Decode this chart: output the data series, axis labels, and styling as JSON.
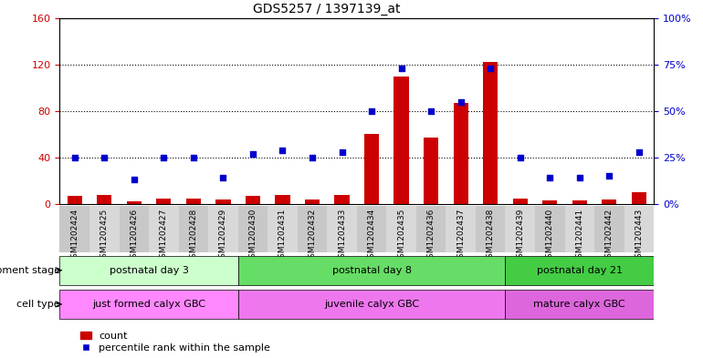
{
  "title": "GDS5257 / 1397139_at",
  "samples": [
    "GSM1202424",
    "GSM1202425",
    "GSM1202426",
    "GSM1202427",
    "GSM1202428",
    "GSM1202429",
    "GSM1202430",
    "GSM1202431",
    "GSM1202432",
    "GSM1202433",
    "GSM1202434",
    "GSM1202435",
    "GSM1202436",
    "GSM1202437",
    "GSM1202438",
    "GSM1202439",
    "GSM1202440",
    "GSM1202441",
    "GSM1202442",
    "GSM1202443"
  ],
  "counts": [
    7,
    8,
    2,
    5,
    5,
    4,
    7,
    8,
    4,
    8,
    60,
    110,
    57,
    87,
    122,
    5,
    3,
    3,
    4,
    10
  ],
  "percentile_pct": [
    25,
    25,
    13,
    25,
    25,
    14,
    27,
    29,
    25,
    28,
    50,
    73,
    50,
    55,
    73,
    25,
    14,
    14,
    15,
    28
  ],
  "bar_color": "#cc0000",
  "dot_color": "#0000cc",
  "ylim_left": [
    0,
    160
  ],
  "ylim_right": [
    0,
    100
  ],
  "yticks_left": [
    0,
    40,
    80,
    120,
    160
  ],
  "yticks_right": [
    0,
    25,
    50,
    75,
    100
  ],
  "grid_values": [
    40,
    80,
    120
  ],
  "groups": [
    {
      "label": "postnatal day 3",
      "start": 0,
      "end": 6,
      "color": "#ccffcc"
    },
    {
      "label": "postnatal day 8",
      "start": 6,
      "end": 15,
      "color": "#66dd66"
    },
    {
      "label": "postnatal day 21",
      "start": 15,
      "end": 20,
      "color": "#44cc44"
    }
  ],
  "cell_types": [
    {
      "label": "just formed calyx GBC",
      "start": 0,
      "end": 6,
      "color": "#ff88ff"
    },
    {
      "label": "juvenile calyx GBC",
      "start": 6,
      "end": 15,
      "color": "#ee77ee"
    },
    {
      "label": "mature calyx GBC",
      "start": 15,
      "end": 20,
      "color": "#dd66dd"
    }
  ],
  "dev_stage_label": "development stage",
  "cell_type_label": "cell type",
  "legend_count": "count",
  "legend_percentile": "percentile rank within the sample",
  "bar_width": 0.5,
  "xticklabel_bg_odd": "#c8c8c8",
  "xticklabel_bg_even": "#d8d8d8"
}
